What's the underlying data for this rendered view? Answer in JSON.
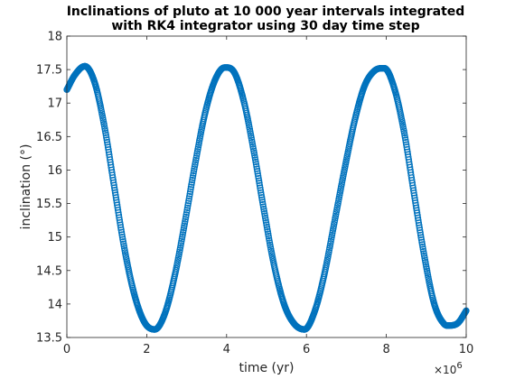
{
  "chart_data": {
    "type": "scatter",
    "title_lines": [
      "Inclinations of pluto at 10 000 year intervals integrated",
      "with RK4 integrator using 30 day time step"
    ],
    "xlabel": "time (yr)",
    "ylabel": "inclination (°)",
    "x_exponent_base": "×10",
    "x_exponent_power": "6",
    "xlim": [
      0,
      10
    ],
    "ylim": [
      13.5,
      18
    ],
    "xticks": [
      0,
      2,
      4,
      6,
      8,
      10
    ],
    "xtick_labels": [
      "0",
      "2",
      "4",
      "6",
      "8",
      "10"
    ],
    "yticks": [
      13.5,
      14,
      14.5,
      15,
      15.5,
      16,
      16.5,
      17,
      17.5,
      18
    ],
    "ytick_labels": [
      "13.5",
      "14",
      "14.5",
      "15",
      "15.5",
      "16",
      "16.5",
      "17",
      "17.5",
      "18"
    ],
    "marker": "circle",
    "grid": false,
    "series": [
      {
        "color": "#0072bd",
        "x": [
          0,
          0.2,
          0.45,
          0.7,
          0.95,
          1.2,
          1.45,
          1.7,
          1.95,
          2.2,
          2.45,
          2.7,
          2.95,
          3.2,
          3.45,
          3.7,
          3.95,
          4.2,
          4.45,
          4.7,
          4.95,
          5.2,
          5.45,
          5.7,
          5.95,
          6.2,
          6.45,
          6.7,
          6.95,
          7.2,
          7.45,
          7.7,
          7.95,
          8.2,
          8.45,
          8.7,
          8.95,
          9.2,
          9.45,
          9.6,
          9.8,
          10
        ],
        "y": [
          17.2,
          17.42,
          17.55,
          17.3,
          16.62,
          15.7,
          14.8,
          14.12,
          13.72,
          13.62,
          13.85,
          14.42,
          15.2,
          16.05,
          16.82,
          17.33,
          17.53,
          17.45,
          16.98,
          16.22,
          15.35,
          14.55,
          13.98,
          13.7,
          13.62,
          13.88,
          14.45,
          15.22,
          16.0,
          16.72,
          17.25,
          17.48,
          17.52,
          17.22,
          16.55,
          15.62,
          14.72,
          14.0,
          13.7,
          13.68,
          13.72,
          13.9
        ]
      }
    ]
  }
}
